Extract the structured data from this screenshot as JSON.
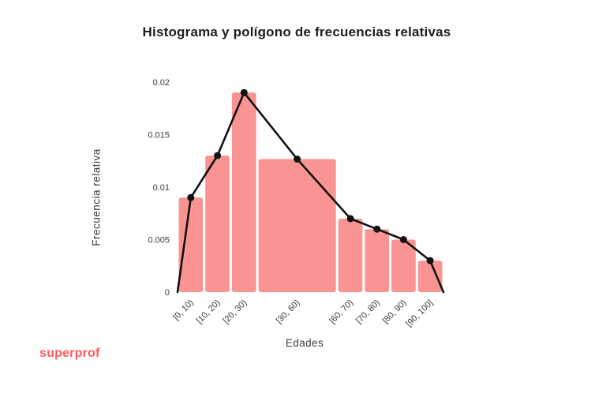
{
  "title": "Histograma y polígono de frecuencias relativas",
  "logo": {
    "text": "superprof"
  },
  "chart_data": {
    "type": "bar",
    "subtype": "histogram_with_frequency_polygon",
    "title": "Histograma y polígono de frecuencias relativas",
    "xlabel": "Edades",
    "ylabel": "Frecuencia relativa",
    "categories": [
      "[0, 10)",
      "[10, 20)",
      "[20, 30)",
      "[30, 60)",
      "[60, 70)",
      "[70, 80)",
      "[80, 90)",
      "[90, 100]"
    ],
    "bins": [
      [
        0,
        10
      ],
      [
        10,
        20
      ],
      [
        20,
        30
      ],
      [
        30,
        60
      ],
      [
        60,
        70
      ],
      [
        70,
        80
      ],
      [
        80,
        90
      ],
      [
        90,
        100
      ]
    ],
    "values": [
      0.009,
      0.013,
      0.019,
      0.012667,
      0.007,
      0.006,
      0.005,
      0.003
    ],
    "polygon": {
      "x": [
        0,
        5,
        15,
        25,
        45,
        65,
        75,
        85,
        95,
        100
      ],
      "y": [
        0,
        0.009,
        0.013,
        0.019,
        0.012667,
        0.007,
        0.006,
        0.005,
        0.003,
        0
      ]
    },
    "yticks": [
      0,
      0.005,
      0.01,
      0.015,
      0.02
    ],
    "ytick_labels": [
      "0",
      "0.005",
      "0.01",
      "0.015",
      "0.02"
    ],
    "xlim": [
      0,
      100
    ],
    "ylim": [
      0,
      0.02
    ],
    "grid": false,
    "legend": "none",
    "colors": {
      "bar": "#FA9492",
      "line": "#111111",
      "point": "#111111",
      "tick_text": "#3a3a3a"
    }
  },
  "colors": {
    "background": "#ffffff",
    "logo": "#FF5A5F",
    "title_text": "#1e1e1e",
    "axis_text": "#3d3d3d"
  }
}
